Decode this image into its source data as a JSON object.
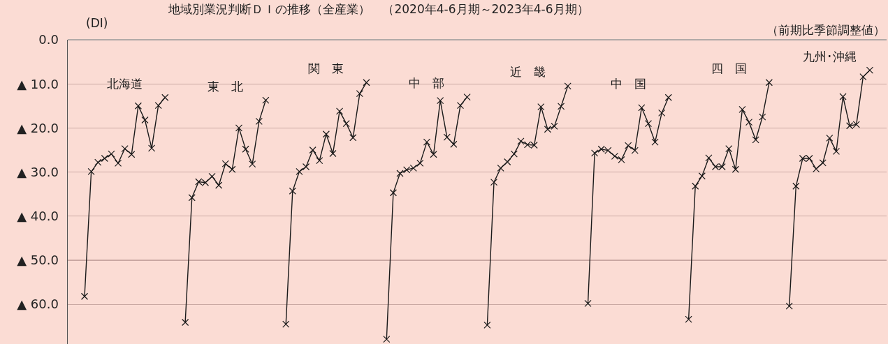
{
  "chart_data": {
    "type": "line",
    "title": "地域別業況判断ＤＩの推移（全産業）　（2020年4-6月期～2023年4-6月期）",
    "subtitle": "（前期比季節調整値）",
    "ylabel": "(DI)",
    "categories": [
      null,
      null,
      null,
      null,
      null,
      null,
      null,
      null,
      null,
      null,
      null,
      null,
      null,
      null,
      null,
      null,
      null,
      null,
      null,
      null,
      null,
      null,
      null,
      null,
      null,
      null,
      null,
      null,
      null,
      null,
      null,
      null,
      null,
      null,
      null,
      null,
      null,
      null,
      null,
      null,
      null,
      null,
      null,
      null,
      null,
      null,
      null,
      null,
      null,
      null,
      null,
      null,
      null,
      null,
      null,
      null,
      null,
      null,
      null,
      null,
      null,
      null,
      null,
      null,
      null,
      null,
      null,
      null,
      null,
      null,
      null,
      null,
      null,
      null,
      null,
      null,
      null,
      null,
      null,
      null,
      null,
      null,
      null,
      null,
      null,
      null,
      null,
      null,
      null,
      null,
      null,
      null,
      null,
      null,
      null,
      null,
      null,
      null,
      null,
      null,
      null,
      null,
      null,
      null,
      null,
      null,
      null,
      null,
      null,
      null,
      null,
      null,
      null,
      null,
      null,
      null,
      null,
      null,
      null,
      null,
      null,
      null
    ],
    "series": [
      {
        "name": "北海道",
        "color": "#1a1a1a",
        "values": [
          null,
          null,
          -58.2,
          -29.9,
          -27.8,
          -26.9,
          -25.9,
          -28.0,
          -24.7,
          -26.0,
          -15.0,
          -18.2,
          -24.6,
          -14.9,
          -13.1,
          null,
          null,
          null,
          null,
          null,
          null,
          null,
          null,
          null,
          null,
          null,
          null,
          null,
          null,
          null,
          null,
          null,
          null,
          null,
          null,
          null,
          null,
          null,
          null,
          null,
          null,
          null,
          null,
          null,
          null,
          null,
          null,
          null,
          null,
          null,
          null,
          null,
          null,
          null,
          null,
          null,
          null,
          null,
          null,
          null,
          null,
          null,
          null,
          null,
          null,
          null,
          null,
          null,
          null,
          null,
          null,
          null,
          null,
          null,
          null,
          null,
          null,
          null,
          null,
          null,
          null,
          null,
          null,
          null,
          null,
          null,
          null,
          null,
          null,
          null,
          null,
          null,
          null,
          null,
          null,
          null,
          null,
          null,
          null,
          null,
          null,
          null,
          null,
          null,
          null,
          null,
          null,
          null,
          null,
          null,
          null,
          null,
          null,
          null,
          null,
          null,
          null,
          null,
          null,
          null,
          null,
          null
        ]
      },
      {
        "name": "東　北",
        "color": "#1a1a1a",
        "values": [
          null,
          null,
          null,
          null,
          null,
          null,
          null,
          null,
          null,
          null,
          null,
          null,
          null,
          null,
          null,
          null,
          null,
          -64.1,
          -35.8,
          -32.2,
          -32.4,
          -31.0,
          -33.0,
          -28.1,
          -29.4,
          -20.0,
          -24.8,
          -28.2,
          -18.5,
          -13.7,
          null,
          null,
          null,
          null,
          null,
          null,
          null,
          null,
          null,
          null,
          null,
          null,
          null,
          null,
          null,
          null,
          null,
          null,
          null,
          null,
          null,
          null,
          null,
          null,
          null,
          null,
          null,
          null,
          null,
          null,
          null,
          null,
          null,
          null,
          null,
          null,
          null,
          null,
          null,
          null,
          null,
          null,
          null,
          null,
          null,
          null,
          null,
          null,
          null,
          null,
          null,
          null,
          null,
          null,
          null,
          null,
          null,
          null,
          null,
          null,
          null,
          null,
          null,
          null,
          null,
          null,
          null,
          null,
          null,
          null,
          null,
          null,
          null,
          null,
          null,
          null,
          null,
          null,
          null,
          null,
          null,
          null,
          null,
          null,
          null,
          null,
          null,
          null,
          null,
          null,
          null,
          null
        ]
      },
      {
        "name": "関　東",
        "color": "#1a1a1a",
        "values": [
          null,
          null,
          null,
          null,
          null,
          null,
          null,
          null,
          null,
          null,
          null,
          null,
          null,
          null,
          null,
          null,
          null,
          null,
          null,
          null,
          null,
          null,
          null,
          null,
          null,
          null,
          null,
          null,
          null,
          null,
          null,
          null,
          -64.5,
          -34.3,
          -29.9,
          -28.8,
          -25.0,
          -27.4,
          -21.4,
          -25.8,
          -16.2,
          -19.0,
          -22.2,
          -12.2,
          -9.7,
          null,
          null,
          null,
          null,
          null,
          null,
          null,
          null,
          null,
          null,
          null,
          null,
          null,
          null,
          null,
          null,
          null,
          null,
          null,
          null,
          null,
          null,
          null,
          null,
          null,
          null,
          null,
          null,
          null,
          null,
          null,
          null,
          null,
          null,
          null,
          null,
          null,
          null,
          null,
          null,
          null,
          null,
          null,
          null,
          null,
          null,
          null,
          null,
          null,
          null,
          null,
          null,
          null,
          null,
          null,
          null,
          null,
          null,
          null,
          null,
          null,
          null,
          null,
          null,
          null,
          null,
          null,
          null,
          null,
          null,
          null,
          null,
          null,
          null,
          null,
          null,
          null
        ]
      },
      {
        "name": "中　部",
        "color": "#1a1a1a",
        "values": [
          null,
          null,
          null,
          null,
          null,
          null,
          null,
          null,
          null,
          null,
          null,
          null,
          null,
          null,
          null,
          null,
          null,
          null,
          null,
          null,
          null,
          null,
          null,
          null,
          null,
          null,
          null,
          null,
          null,
          null,
          null,
          null,
          null,
          null,
          null,
          null,
          null,
          null,
          null,
          null,
          null,
          null,
          null,
          null,
          null,
          null,
          null,
          -67.9,
          -34.7,
          -30.3,
          -29.5,
          -29.1,
          -28.0,
          -23.2,
          -26.0,
          -13.8,
          -22.1,
          -23.7,
          -14.9,
          -13.0,
          null,
          null,
          null,
          null,
          null,
          null,
          null,
          null,
          null,
          null,
          null,
          null,
          null,
          null,
          null,
          null,
          null,
          null,
          null,
          null,
          null,
          null,
          null,
          null,
          null,
          null,
          null,
          null,
          null,
          null,
          null,
          null,
          null,
          null,
          null,
          null,
          null,
          null,
          null,
          null,
          null,
          null,
          null,
          null,
          null,
          null,
          null,
          null,
          null,
          null,
          null,
          null,
          null,
          null,
          null,
          null,
          null,
          null,
          null,
          null,
          null,
          null
        ]
      },
      {
        "name": "近　畿",
        "color": "#1a1a1a",
        "values": [
          null,
          null,
          null,
          null,
          null,
          null,
          null,
          null,
          null,
          null,
          null,
          null,
          null,
          null,
          null,
          null,
          null,
          null,
          null,
          null,
          null,
          null,
          null,
          null,
          null,
          null,
          null,
          null,
          null,
          null,
          null,
          null,
          null,
          null,
          null,
          null,
          null,
          null,
          null,
          null,
          null,
          null,
          null,
          null,
          null,
          null,
          null,
          null,
          null,
          null,
          null,
          null,
          null,
          null,
          null,
          null,
          null,
          null,
          null,
          null,
          null,
          null,
          -64.7,
          -32.3,
          -29.1,
          -27.7,
          -25.9,
          -23.0,
          -23.8,
          -23.9,
          -15.2,
          -20.3,
          -19.6,
          -15.1,
          -10.5,
          null,
          null,
          null,
          null,
          null,
          null,
          null,
          null,
          null,
          null,
          null,
          null,
          null,
          null,
          null,
          null,
          null,
          null,
          null,
          null,
          null,
          null,
          null,
          null,
          null,
          null,
          null,
          null,
          null,
          null,
          null,
          null,
          null,
          null,
          null,
          null,
          null,
          null,
          null,
          null,
          null,
          null,
          null,
          null,
          null,
          null,
          null
        ]
      },
      {
        "name": "中　国",
        "color": "#1a1a1a",
        "values": [
          null,
          null,
          null,
          null,
          null,
          null,
          null,
          null,
          null,
          null,
          null,
          null,
          null,
          null,
          null,
          null,
          null,
          null,
          null,
          null,
          null,
          null,
          null,
          null,
          null,
          null,
          null,
          null,
          null,
          null,
          null,
          null,
          null,
          null,
          null,
          null,
          null,
          null,
          null,
          null,
          null,
          null,
          null,
          null,
          null,
          null,
          null,
          null,
          null,
          null,
          null,
          null,
          null,
          null,
          null,
          null,
          null,
          null,
          null,
          null,
          null,
          null,
          null,
          null,
          null,
          null,
          null,
          null,
          null,
          null,
          null,
          null,
          null,
          null,
          null,
          null,
          null,
          -59.8,
          -25.7,
          -24.8,
          -25.1,
          -26.4,
          -27.2,
          -24.0,
          -25.1,
          -15.4,
          -19.0,
          -23.2,
          -16.6,
          -13.1,
          null,
          null,
          null,
          null,
          null,
          null,
          null,
          null,
          null,
          null,
          null,
          null,
          null,
          null,
          null,
          null,
          null,
          null,
          null,
          null,
          null,
          null,
          null,
          null,
          null,
          null,
          null,
          null,
          null,
          null,
          null,
          null
        ]
      },
      {
        "name": "四　国",
        "color": "#1a1a1a",
        "values": [
          null,
          null,
          null,
          null,
          null,
          null,
          null,
          null,
          null,
          null,
          null,
          null,
          null,
          null,
          null,
          null,
          null,
          null,
          null,
          null,
          null,
          null,
          null,
          null,
          null,
          null,
          null,
          null,
          null,
          null,
          null,
          null,
          null,
          null,
          null,
          null,
          null,
          null,
          null,
          null,
          null,
          null,
          null,
          null,
          null,
          null,
          null,
          null,
          null,
          null,
          null,
          null,
          null,
          null,
          null,
          null,
          null,
          null,
          null,
          null,
          null,
          null,
          null,
          null,
          null,
          null,
          null,
          null,
          null,
          null,
          null,
          null,
          null,
          null,
          null,
          null,
          null,
          null,
          null,
          null,
          null,
          null,
          null,
          null,
          null,
          null,
          null,
          null,
          null,
          null,
          null,
          null,
          -63.4,
          -33.2,
          -30.9,
          -26.8,
          -28.8,
          -28.8,
          -24.7,
          -29.4,
          -15.8,
          -18.7,
          -22.7,
          -17.5,
          -9.7,
          null,
          null,
          null,
          null,
          null,
          null,
          null,
          null,
          null,
          null,
          null,
          null,
          null,
          null,
          null,
          null,
          null
        ]
      },
      {
        "name": "九州･沖縄",
        "color": "#1a1a1a",
        "values": [
          null,
          null,
          null,
          null,
          null,
          null,
          null,
          null,
          null,
          null,
          null,
          null,
          null,
          null,
          null,
          null,
          null,
          null,
          null,
          null,
          null,
          null,
          null,
          null,
          null,
          null,
          null,
          null,
          null,
          null,
          null,
          null,
          null,
          null,
          null,
          null,
          null,
          null,
          null,
          null,
          null,
          null,
          null,
          null,
          null,
          null,
          null,
          null,
          null,
          null,
          null,
          null,
          null,
          null,
          null,
          null,
          null,
          null,
          null,
          null,
          null,
          null,
          null,
          null,
          null,
          null,
          null,
          null,
          null,
          null,
          null,
          null,
          null,
          null,
          null,
          null,
          null,
          null,
          null,
          null,
          null,
          null,
          null,
          null,
          null,
          null,
          null,
          null,
          null,
          null,
          null,
          null,
          null,
          null,
          null,
          null,
          null,
          null,
          null,
          null,
          null,
          null,
          null,
          null,
          null,
          null,
          null,
          -60.4,
          -33.2,
          -26.9,
          -26.9,
          -29.3,
          -27.9,
          -22.3,
          -25.3,
          -12.9,
          -19.5,
          -19.2,
          -8.4,
          -6.9,
          null,
          null
        ]
      }
    ],
    "ylim": [
      -69,
      0
    ],
    "yticks": [
      {
        "value": 0,
        "label": "0.0"
      },
      {
        "value": -10,
        "label": "▲ 10.0"
      },
      {
        "value": -20,
        "label": "▲ 20.0"
      },
      {
        "value": -30,
        "label": "▲ 30.0"
      },
      {
        "value": -40,
        "label": "▲ 40.0"
      },
      {
        "value": -50,
        "label": "▲ 50.0"
      },
      {
        "value": -60,
        "label": "▲ 60.0"
      }
    ],
    "grid": "y",
    "legend": false,
    "marker": "cross",
    "line_style": "solid",
    "tick_labels": "y"
  }
}
